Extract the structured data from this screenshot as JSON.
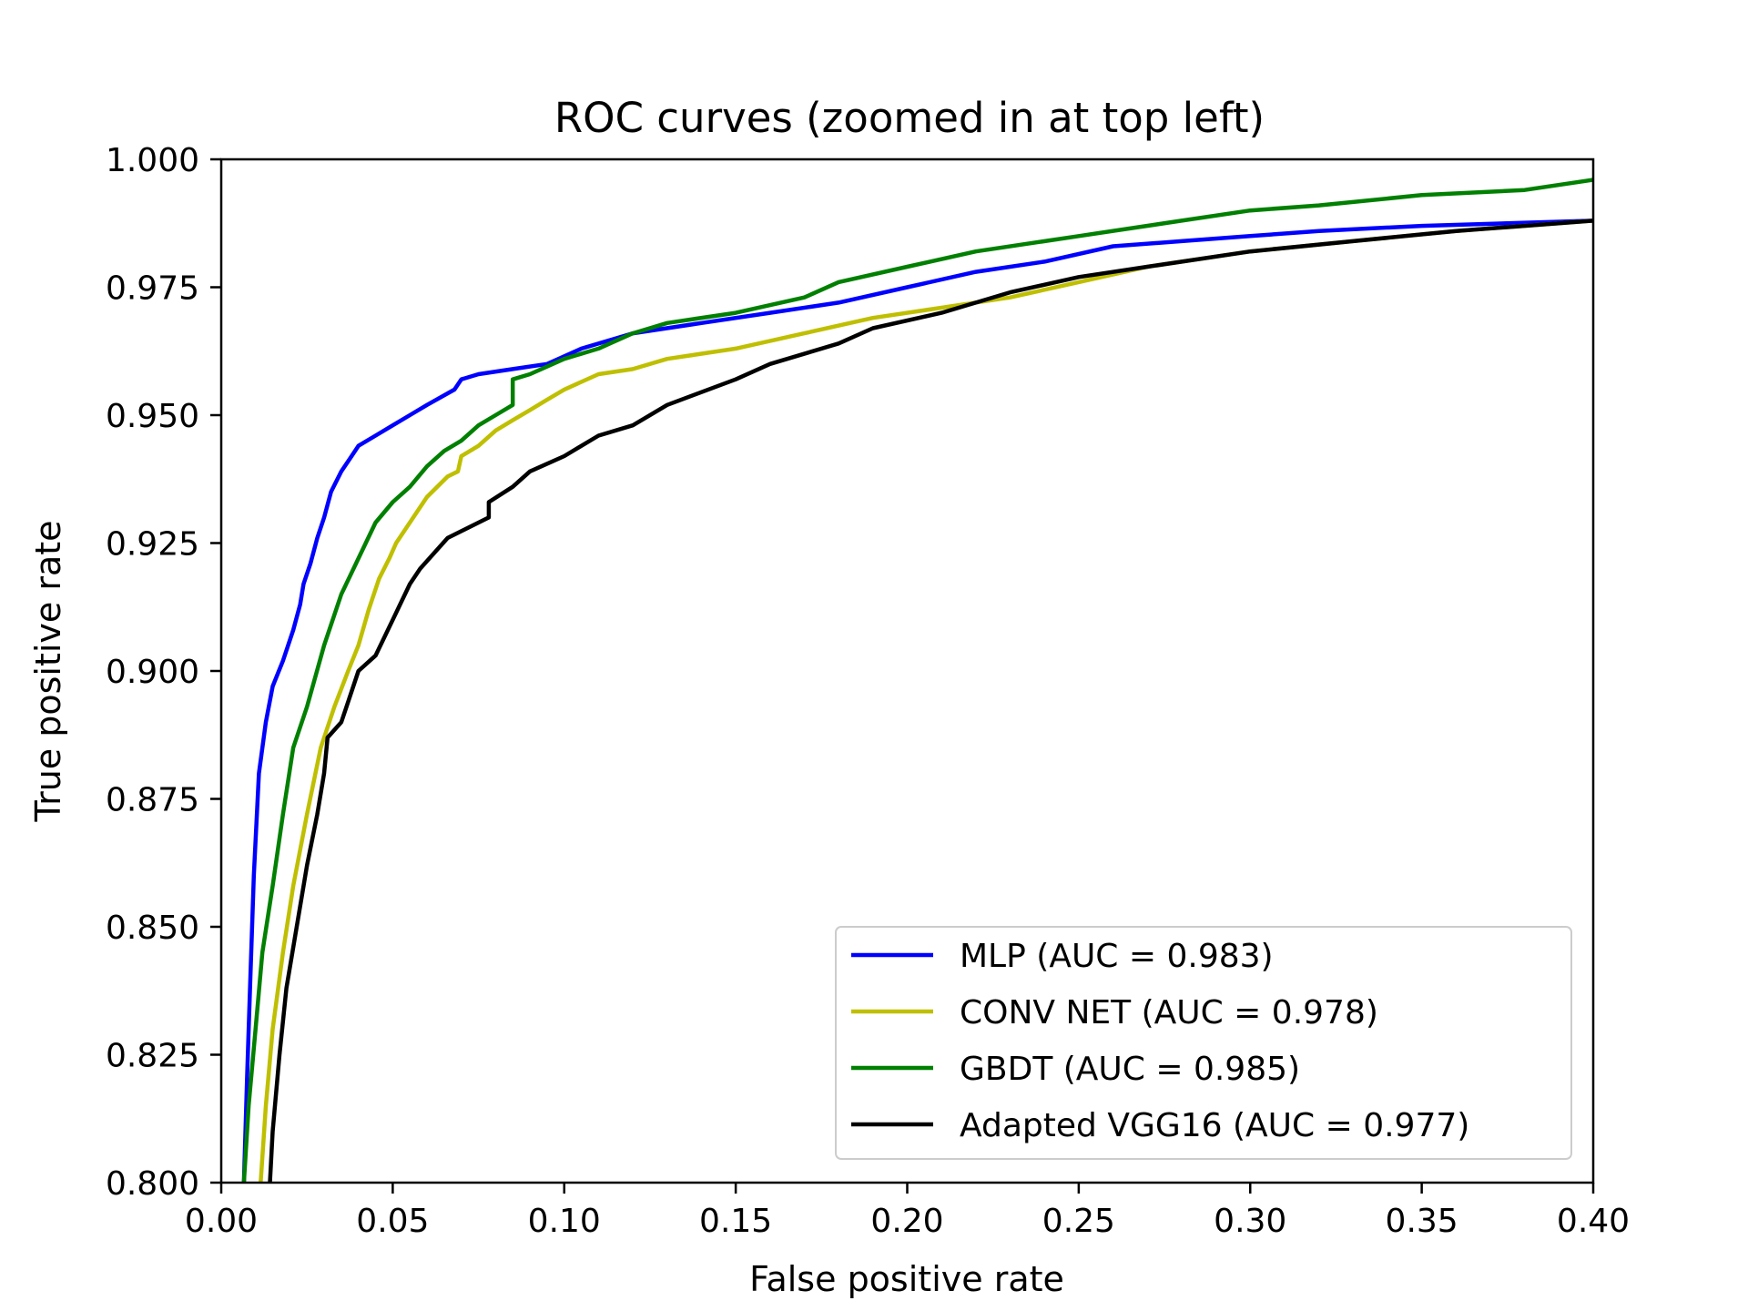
{
  "chart_data": {
    "type": "line",
    "title": "ROC curves (zoomed in at top left)",
    "xlabel": "False positive rate",
    "ylabel": "True positive rate",
    "xlim": [
      0.0,
      0.4
    ],
    "ylim": [
      0.8,
      1.0
    ],
    "grid": false,
    "legend_position": "lower-right",
    "x_ticks": [
      {
        "value": 0.0,
        "label": "0.00"
      },
      {
        "value": 0.05,
        "label": "0.05"
      },
      {
        "value": 0.1,
        "label": "0.10"
      },
      {
        "value": 0.15,
        "label": "0.15"
      },
      {
        "value": 0.2,
        "label": "0.20"
      },
      {
        "value": 0.25,
        "label": "0.25"
      },
      {
        "value": 0.3,
        "label": "0.30"
      },
      {
        "value": 0.35,
        "label": "0.35"
      },
      {
        "value": 0.4,
        "label": "0.40"
      }
    ],
    "y_ticks": [
      {
        "value": 0.8,
        "label": "0.800"
      },
      {
        "value": 0.825,
        "label": "0.825"
      },
      {
        "value": 0.85,
        "label": "0.850"
      },
      {
        "value": 0.875,
        "label": "0.875"
      },
      {
        "value": 0.9,
        "label": "0.900"
      },
      {
        "value": 0.925,
        "label": "0.925"
      },
      {
        "value": 0.95,
        "label": "0.950"
      },
      {
        "value": 0.975,
        "label": "0.975"
      },
      {
        "value": 1.0,
        "label": "1.000"
      }
    ],
    "series": [
      {
        "name": "MLP (AUC = 0.983)",
        "color": "#0000ff",
        "points": [
          [
            0.0066,
            0.8
          ],
          [
            0.0075,
            0.82
          ],
          [
            0.0085,
            0.84
          ],
          [
            0.0095,
            0.86
          ],
          [
            0.011,
            0.88
          ],
          [
            0.013,
            0.89
          ],
          [
            0.015,
            0.897
          ],
          [
            0.018,
            0.902
          ],
          [
            0.021,
            0.908
          ],
          [
            0.023,
            0.913
          ],
          [
            0.024,
            0.917
          ],
          [
            0.026,
            0.921
          ],
          [
            0.028,
            0.926
          ],
          [
            0.03,
            0.93
          ],
          [
            0.032,
            0.935
          ],
          [
            0.035,
            0.939
          ],
          [
            0.038,
            0.942
          ],
          [
            0.04,
            0.944
          ],
          [
            0.045,
            0.946
          ],
          [
            0.05,
            0.948
          ],
          [
            0.055,
            0.95
          ],
          [
            0.06,
            0.952
          ],
          [
            0.068,
            0.955
          ],
          [
            0.07,
            0.957
          ],
          [
            0.075,
            0.958
          ],
          [
            0.085,
            0.959
          ],
          [
            0.095,
            0.96
          ],
          [
            0.105,
            0.963
          ],
          [
            0.12,
            0.966
          ],
          [
            0.14,
            0.968
          ],
          [
            0.16,
            0.97
          ],
          [
            0.18,
            0.972
          ],
          [
            0.2,
            0.975
          ],
          [
            0.22,
            0.978
          ],
          [
            0.24,
            0.98
          ],
          [
            0.26,
            0.983
          ],
          [
            0.28,
            0.984
          ],
          [
            0.3,
            0.985
          ],
          [
            0.32,
            0.986
          ],
          [
            0.35,
            0.987
          ],
          [
            0.4,
            0.988
          ]
        ]
      },
      {
        "name": "CONV NET (AUC = 0.978)",
        "color": "#bfbf00",
        "points": [
          [
            0.0115,
            0.8
          ],
          [
            0.013,
            0.815
          ],
          [
            0.015,
            0.83
          ],
          [
            0.018,
            0.845
          ],
          [
            0.021,
            0.858
          ],
          [
            0.025,
            0.872
          ],
          [
            0.029,
            0.885
          ],
          [
            0.033,
            0.893
          ],
          [
            0.037,
            0.9
          ],
          [
            0.04,
            0.905
          ],
          [
            0.043,
            0.912
          ],
          [
            0.046,
            0.918
          ],
          [
            0.049,
            0.922
          ],
          [
            0.051,
            0.925
          ],
          [
            0.054,
            0.928
          ],
          [
            0.057,
            0.931
          ],
          [
            0.06,
            0.934
          ],
          [
            0.066,
            0.938
          ],
          [
            0.069,
            0.939
          ],
          [
            0.07,
            0.942
          ],
          [
            0.075,
            0.944
          ],
          [
            0.08,
            0.947
          ],
          [
            0.085,
            0.949
          ],
          [
            0.09,
            0.951
          ],
          [
            0.095,
            0.953
          ],
          [
            0.1,
            0.955
          ],
          [
            0.11,
            0.958
          ],
          [
            0.12,
            0.959
          ],
          [
            0.13,
            0.961
          ],
          [
            0.15,
            0.963
          ],
          [
            0.17,
            0.966
          ],
          [
            0.19,
            0.969
          ],
          [
            0.21,
            0.971
          ],
          [
            0.23,
            0.973
          ],
          [
            0.25,
            0.976
          ],
          [
            0.27,
            0.979
          ],
          [
            0.3,
            0.982
          ],
          [
            0.33,
            0.984
          ],
          [
            0.36,
            0.986
          ],
          [
            0.4,
            0.988
          ]
        ]
      },
      {
        "name": "GBDT (AUC = 0.985)",
        "color": "#008000",
        "points": [
          [
            0.0066,
            0.8
          ],
          [
            0.008,
            0.815
          ],
          [
            0.01,
            0.83
          ],
          [
            0.012,
            0.845
          ],
          [
            0.015,
            0.858
          ],
          [
            0.018,
            0.872
          ],
          [
            0.021,
            0.885
          ],
          [
            0.025,
            0.893
          ],
          [
            0.03,
            0.905
          ],
          [
            0.035,
            0.915
          ],
          [
            0.04,
            0.922
          ],
          [
            0.045,
            0.929
          ],
          [
            0.05,
            0.933
          ],
          [
            0.055,
            0.936
          ],
          [
            0.06,
            0.94
          ],
          [
            0.065,
            0.943
          ],
          [
            0.07,
            0.945
          ],
          [
            0.075,
            0.948
          ],
          [
            0.08,
            0.95
          ],
          [
            0.085,
            0.952
          ],
          [
            0.085,
            0.957
          ],
          [
            0.09,
            0.958
          ],
          [
            0.1,
            0.961
          ],
          [
            0.11,
            0.963
          ],
          [
            0.12,
            0.966
          ],
          [
            0.13,
            0.968
          ],
          [
            0.15,
            0.97
          ],
          [
            0.17,
            0.973
          ],
          [
            0.18,
            0.976
          ],
          [
            0.2,
            0.979
          ],
          [
            0.22,
            0.982
          ],
          [
            0.25,
            0.985
          ],
          [
            0.28,
            0.988
          ],
          [
            0.3,
            0.99
          ],
          [
            0.32,
            0.991
          ],
          [
            0.35,
            0.993
          ],
          [
            0.38,
            0.994
          ],
          [
            0.4,
            0.996
          ]
        ]
      },
      {
        "name": "Adapted VGG16 (AUC = 0.977)",
        "color": "#000000",
        "points": [
          [
            0.0142,
            0.8
          ],
          [
            0.015,
            0.81
          ],
          [
            0.017,
            0.825
          ],
          [
            0.019,
            0.838
          ],
          [
            0.022,
            0.85
          ],
          [
            0.025,
            0.862
          ],
          [
            0.028,
            0.872
          ],
          [
            0.03,
            0.88
          ],
          [
            0.031,
            0.887
          ],
          [
            0.035,
            0.89
          ],
          [
            0.038,
            0.896
          ],
          [
            0.04,
            0.9
          ],
          [
            0.045,
            0.903
          ],
          [
            0.05,
            0.91
          ],
          [
            0.055,
            0.917
          ],
          [
            0.058,
            0.92
          ],
          [
            0.062,
            0.923
          ],
          [
            0.066,
            0.926
          ],
          [
            0.072,
            0.928
          ],
          [
            0.078,
            0.93
          ],
          [
            0.078,
            0.933
          ],
          [
            0.085,
            0.936
          ],
          [
            0.09,
            0.939
          ],
          [
            0.1,
            0.942
          ],
          [
            0.11,
            0.946
          ],
          [
            0.12,
            0.948
          ],
          [
            0.13,
            0.952
          ],
          [
            0.15,
            0.957
          ],
          [
            0.16,
            0.96
          ],
          [
            0.18,
            0.964
          ],
          [
            0.19,
            0.967
          ],
          [
            0.21,
            0.97
          ],
          [
            0.23,
            0.974
          ],
          [
            0.25,
            0.977
          ],
          [
            0.27,
            0.979
          ],
          [
            0.3,
            0.982
          ],
          [
            0.33,
            0.984
          ],
          [
            0.36,
            0.986
          ],
          [
            0.4,
            0.988
          ]
        ]
      }
    ]
  }
}
